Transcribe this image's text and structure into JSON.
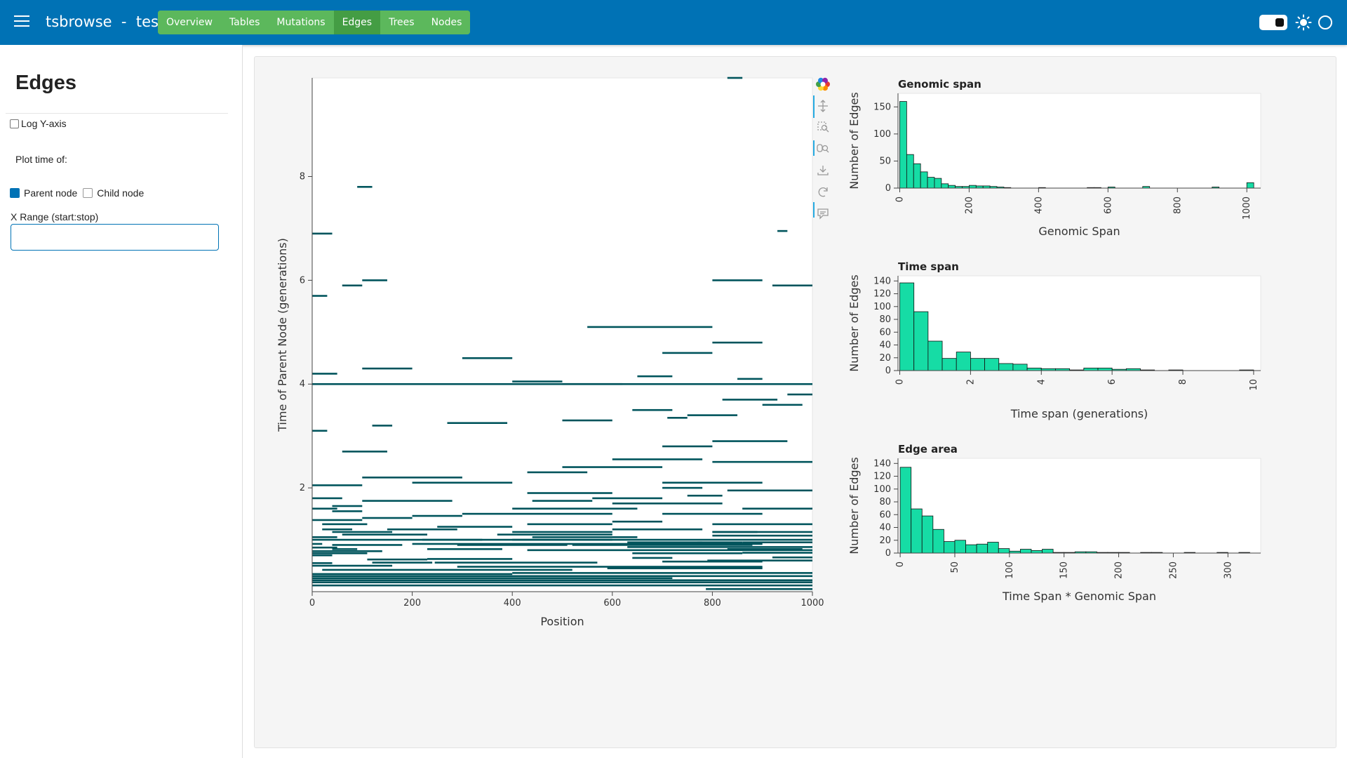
{
  "header": {
    "app_name": "tsbrowse",
    "separator": "-",
    "file_name": "test",
    "tabs": [
      {
        "label": "Overview",
        "active": false
      },
      {
        "label": "Tables",
        "active": false
      },
      {
        "label": "Mutations",
        "active": false
      },
      {
        "label": "Edges",
        "active": true
      },
      {
        "label": "Trees",
        "active": false
      },
      {
        "label": "Nodes",
        "active": false
      }
    ],
    "colors": {
      "bar": "#0072b5",
      "tabs": "#5cb85c",
      "tab_active": "#449d44"
    }
  },
  "sidebar": {
    "title": "Edges",
    "log_y_label": "Log Y-axis",
    "log_y_checked": false,
    "plot_time_label": "Plot time of:",
    "parent_node_label": "Parent node",
    "parent_node_checked": true,
    "child_node_label": "Child node",
    "child_node_checked": false,
    "x_range_label": "X Range (start:stop)",
    "x_range_value": "",
    "x_range_placeholder": ""
  },
  "toolbar": {
    "icons": [
      "bokeh-logo-icon",
      "pan-icon",
      "box-zoom-icon",
      "wheel-zoom-icon",
      "save-icon",
      "reset-icon",
      "hover-icon"
    ]
  },
  "chart_data": [
    {
      "type": "scatter",
      "mark": "horizontal segments (edges)",
      "xlabel": "Position",
      "ylabel": "Time of Parent Node (generations)",
      "xlim": [
        0,
        1000
      ],
      "ylim": [
        0,
        9.9
      ],
      "x_ticks": [
        0,
        200,
        400,
        600,
        800,
        1000
      ],
      "y_ticks": [
        2,
        4,
        6,
        8
      ],
      "color": "#00545c",
      "segments": [
        [
          787,
          1000,
          0.05
        ],
        [
          0,
          1000,
          0.12
        ],
        [
          0,
          1000,
          0.18
        ],
        [
          0,
          1000,
          0.22
        ],
        [
          0,
          720,
          0.26
        ],
        [
          0,
          1000,
          0.3
        ],
        [
          0,
          400,
          0.34
        ],
        [
          400,
          1000,
          0.36
        ],
        [
          20,
          520,
          0.42
        ],
        [
          590,
          900,
          0.45
        ],
        [
          290,
          900,
          0.48
        ],
        [
          0,
          160,
          0.5
        ],
        [
          0,
          40,
          0.55
        ],
        [
          120,
          240,
          0.56
        ],
        [
          245,
          570,
          0.56
        ],
        [
          700,
          900,
          0.58
        ],
        [
          790,
          1000,
          0.6
        ],
        [
          110,
          230,
          0.62
        ],
        [
          230,
          400,
          0.63
        ],
        [
          640,
          720,
          0.65
        ],
        [
          920,
          1000,
          0.66
        ],
        [
          0,
          40,
          0.7
        ],
        [
          0,
          110,
          0.74
        ],
        [
          640,
          860,
          0.74
        ],
        [
          860,
          1000,
          0.75
        ],
        [
          0,
          140,
          0.78
        ],
        [
          430,
          1000,
          0.8
        ],
        [
          40,
          90,
          0.82
        ],
        [
          230,
          380,
          0.82
        ],
        [
          830,
          980,
          0.82
        ],
        [
          0,
          50,
          0.85
        ],
        [
          630,
          1000,
          0.86
        ],
        [
          40,
          180,
          0.9
        ],
        [
          290,
          510,
          0.9
        ],
        [
          520,
          880,
          0.9
        ],
        [
          0,
          20,
          0.92
        ],
        [
          200,
          900,
          0.92
        ],
        [
          630,
          780,
          0.95
        ],
        [
          770,
          860,
          0.95
        ],
        [
          860,
          1000,
          0.95
        ],
        [
          0,
          1000,
          1.0
        ],
        [
          220,
          340,
          1.0
        ],
        [
          400,
          600,
          1.0
        ],
        [
          0,
          50,
          1.05
        ],
        [
          60,
          230,
          1.1
        ],
        [
          440,
          650,
          1.05
        ],
        [
          370,
          600,
          1.1
        ],
        [
          800,
          1000,
          1.08
        ],
        [
          800,
          890,
          1.15
        ],
        [
          40,
          160,
          1.15
        ],
        [
          150,
          290,
          1.2
        ],
        [
          600,
          780,
          1.2
        ],
        [
          800,
          1000,
          1.15
        ],
        [
          400,
          600,
          1.15
        ],
        [
          20,
          80,
          1.2
        ],
        [
          20,
          110,
          1.3
        ],
        [
          600,
          700,
          1.35
        ],
        [
          800,
          1000,
          1.3
        ],
        [
          250,
          400,
          1.25
        ],
        [
          430,
          600,
          1.3
        ],
        [
          0,
          100,
          1.38
        ],
        [
          100,
          200,
          1.42
        ],
        [
          200,
          300,
          1.46
        ],
        [
          300,
          600,
          1.5
        ],
        [
          700,
          900,
          1.5
        ],
        [
          40,
          100,
          1.55
        ],
        [
          0,
          50,
          1.6
        ],
        [
          400,
          650,
          1.6
        ],
        [
          860,
          1000,
          1.6
        ],
        [
          40,
          100,
          1.65
        ],
        [
          600,
          820,
          1.7
        ],
        [
          100,
          280,
          1.75
        ],
        [
          440,
          560,
          1.75
        ],
        [
          0,
          60,
          1.8
        ],
        [
          560,
          700,
          1.8
        ],
        [
          430,
          600,
          1.9
        ],
        [
          750,
          820,
          1.85
        ],
        [
          830,
          1000,
          1.95
        ],
        [
          700,
          780,
          2.0
        ],
        [
          0,
          100,
          2.05
        ],
        [
          200,
          400,
          2.1
        ],
        [
          700,
          900,
          2.1
        ],
        [
          100,
          300,
          2.2
        ],
        [
          430,
          550,
          2.3
        ],
        [
          500,
          700,
          2.4
        ],
        [
          600,
          780,
          2.55
        ],
        [
          800,
          1000,
          2.5
        ],
        [
          60,
          150,
          2.7
        ],
        [
          700,
          800,
          2.8
        ],
        [
          800,
          950,
          2.9
        ],
        [
          0,
          30,
          3.1
        ],
        [
          120,
          160,
          3.2
        ],
        [
          270,
          390,
          3.25
        ],
        [
          500,
          600,
          3.3
        ],
        [
          710,
          750,
          3.35
        ],
        [
          750,
          850,
          3.4
        ],
        [
          640,
          720,
          3.5
        ],
        [
          900,
          980,
          3.6
        ],
        [
          820,
          930,
          3.7
        ],
        [
          950,
          1000,
          3.8
        ],
        [
          0,
          1000,
          4.0
        ],
        [
          500,
          620,
          4.0
        ],
        [
          400,
          500,
          4.05
        ],
        [
          850,
          900,
          4.1
        ],
        [
          650,
          720,
          4.15
        ],
        [
          0,
          50,
          4.2
        ],
        [
          100,
          200,
          4.3
        ],
        [
          300,
          400,
          4.5
        ],
        [
          700,
          800,
          4.6
        ],
        [
          800,
          900,
          4.8
        ],
        [
          550,
          800,
          5.1
        ],
        [
          0,
          30,
          5.7
        ],
        [
          60,
          100,
          5.9
        ],
        [
          920,
          1000,
          5.9
        ],
        [
          100,
          150,
          6.0
        ],
        [
          800,
          900,
          6.0
        ],
        [
          0,
          40,
          6.9
        ],
        [
          930,
          950,
          6.95
        ],
        [
          90,
          120,
          7.8
        ],
        [
          830,
          860,
          9.9
        ]
      ]
    },
    {
      "type": "bar",
      "title": "Genomic span",
      "xlabel": "Genomic Span",
      "ylabel": "Number of Edges",
      "xlim": [
        -5,
        1040
      ],
      "ylim": [
        0,
        175
      ],
      "x_ticks": [
        0,
        200,
        400,
        600,
        800,
        1000
      ],
      "y_ticks": [
        0,
        50,
        100,
        150
      ],
      "bin_width": 20,
      "bin_edges_start": [
        0,
        20,
        40,
        60,
        80,
        100,
        120,
        140,
        160,
        180,
        200,
        220,
        240,
        260,
        280,
        300,
        400,
        540,
        560,
        600,
        700,
        900,
        1000
      ],
      "values": [
        160,
        62,
        45,
        30,
        20,
        18,
        8,
        5,
        3,
        3,
        5,
        4,
        4,
        3,
        2,
        1,
        1,
        1,
        1,
        2,
        3,
        2,
        10
      ],
      "color": "#16dca5"
    },
    {
      "type": "bar",
      "title": "Time span",
      "xlabel": "Time span (generations)",
      "ylabel": "Number of Edges",
      "xlim": [
        -0.05,
        10.2
      ],
      "ylim": [
        0,
        148
      ],
      "x_ticks": [
        0,
        2,
        4,
        6,
        8,
        10
      ],
      "y_ticks": [
        0,
        20,
        40,
        60,
        80,
        100,
        120,
        140
      ],
      "bin_width": 0.4,
      "bin_edges_start": [
        0,
        0.4,
        0.8,
        1.2,
        1.6,
        2.0,
        2.4,
        2.8,
        3.2,
        3.6,
        4.0,
        4.4,
        4.8,
        5.2,
        5.6,
        6.0,
        6.4,
        6.8,
        7.2,
        7.6,
        8.0,
        8.4,
        8.8,
        9.2,
        9.6
      ],
      "values": [
        137,
        92,
        46,
        19,
        29,
        19,
        19,
        11,
        10,
        4,
        3,
        3,
        1,
        4,
        4,
        2,
        3,
        1,
        0,
        1,
        0,
        0,
        0,
        0,
        1
      ],
      "color": "#16dca5"
    },
    {
      "type": "bar",
      "title": "Edge area",
      "xlabel": "Time Span * Genomic Span",
      "ylabel": "Number of Edges",
      "xlim": [
        -2,
        330
      ],
      "ylim": [
        0,
        148
      ],
      "x_ticks": [
        0,
        50,
        100,
        150,
        200,
        250,
        300
      ],
      "y_ticks": [
        0,
        20,
        40,
        60,
        80,
        100,
        120,
        140
      ],
      "bin_width": 10,
      "bin_edges_start": [
        0,
        10,
        20,
        30,
        40,
        50,
        60,
        70,
        80,
        90,
        100,
        110,
        120,
        130,
        140,
        150,
        160,
        170,
        180,
        190,
        200,
        220,
        230,
        260,
        290,
        310
      ],
      "values": [
        134,
        69,
        58,
        37,
        18,
        20,
        13,
        14,
        17,
        7,
        3,
        6,
        4,
        6,
        1,
        1,
        2,
        2,
        1,
        1,
        1,
        1,
        1,
        1,
        1,
        1
      ],
      "color": "#16dca5"
    }
  ]
}
